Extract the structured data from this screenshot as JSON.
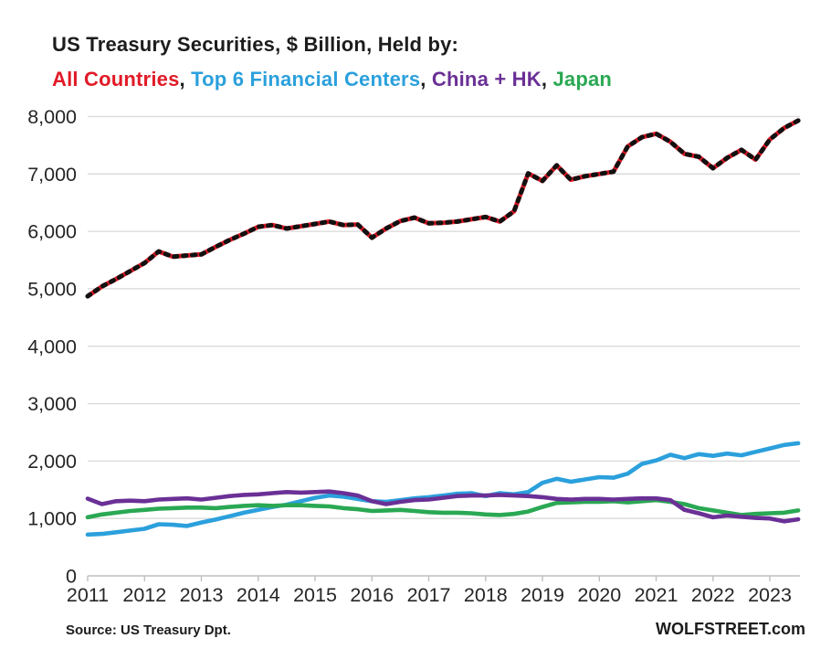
{
  "title": {
    "text": "US Treasury Securities, $ Billion, Held by:"
  },
  "subtitle": {
    "segments": [
      {
        "label": "All Countries",
        "color": "#e11a27"
      },
      {
        "label": ", ",
        "color": "#1c1c1c"
      },
      {
        "label": "Top 6 Financial Centers",
        "color": "#2ba0dc"
      },
      {
        "label": ", ",
        "color": "#1c1c1c"
      },
      {
        "label": "China + HK",
        "color": "#6a3096"
      },
      {
        "label": ", ",
        "color": "#1c1c1c"
      },
      {
        "label": "Japan",
        "color": "#2aa853"
      }
    ]
  },
  "footer": {
    "source": "Source: US Treasury  Dpt.",
    "brand": "WOLFSTREET.com"
  },
  "chart_data": {
    "type": "line",
    "title": "US Treasury Securities, $ Billion, Held by:",
    "xlabel": "",
    "ylabel": "$ Billion",
    "grid": "horizontal",
    "legend": "colored-title-text",
    "xlim": [
      2011,
      2023.53
    ],
    "ylim": [
      0,
      8300
    ],
    "x_ticks": [
      2011,
      2012,
      2013,
      2014,
      2015,
      2016,
      2017,
      2018,
      2019,
      2020,
      2021,
      2022,
      2023
    ],
    "y_ticks": [
      0,
      1000,
      2000,
      3000,
      4000,
      5000,
      6000,
      7000,
      8000
    ],
    "x": [
      2011,
      2011.25,
      2011.5,
      2011.75,
      2012,
      2012.25,
      2012.5,
      2012.75,
      2013,
      2013.25,
      2013.5,
      2013.75,
      2014,
      2014.25,
      2014.5,
      2014.75,
      2015,
      2015.25,
      2015.5,
      2015.75,
      2016,
      2016.25,
      2016.5,
      2016.75,
      2017,
      2017.25,
      2017.5,
      2017.75,
      2018,
      2018.25,
      2018.5,
      2018.75,
      2019,
      2019.25,
      2019.5,
      2019.75,
      2020,
      2020.25,
      2020.5,
      2020.75,
      2021,
      2021.25,
      2021.5,
      2021.75,
      2022,
      2022.25,
      2022.5,
      2022.75,
      2023,
      2023.25,
      2023.5
    ],
    "series": [
      {
        "name": "All Countries",
        "color": "#e11a27",
        "style": "solid-red-with-black-dot-overlay",
        "values": [
          4870,
          5040,
          5170,
          5310,
          5450,
          5650,
          5560,
          5580,
          5600,
          5730,
          5850,
          5960,
          6080,
          6110,
          6050,
          6090,
          6130,
          6170,
          6110,
          6120,
          5890,
          6050,
          6180,
          6240,
          6140,
          6150,
          6170,
          6210,
          6250,
          6170,
          6350,
          7010,
          6880,
          7150,
          6900,
          6960,
          7000,
          7040,
          7480,
          7640,
          7700,
          7560,
          7350,
          7300,
          7100,
          7280,
          7420,
          7250,
          7600,
          7800,
          7930
        ]
      },
      {
        "name": "Top 6 Financial Centers",
        "color": "#2ba0dc",
        "style": "solid",
        "values": [
          720,
          730,
          760,
          790,
          820,
          900,
          890,
          870,
          930,
          980,
          1040,
          1100,
          1150,
          1200,
          1240,
          1300,
          1360,
          1400,
          1380,
          1340,
          1300,
          1290,
          1320,
          1350,
          1370,
          1400,
          1430,
          1440,
          1390,
          1440,
          1420,
          1460,
          1620,
          1690,
          1640,
          1680,
          1720,
          1710,
          1780,
          1950,
          2010,
          2110,
          2050,
          2120,
          2090,
          2130,
          2100,
          2160,
          2220,
          2280,
          2310
        ]
      },
      {
        "name": "China + HK",
        "color": "#6a3096",
        "style": "solid",
        "values": [
          1345,
          1250,
          1300,
          1310,
          1300,
          1330,
          1340,
          1350,
          1330,
          1360,
          1390,
          1410,
          1420,
          1440,
          1460,
          1450,
          1460,
          1470,
          1440,
          1400,
          1300,
          1250,
          1290,
          1320,
          1330,
          1360,
          1390,
          1400,
          1400,
          1410,
          1400,
          1390,
          1370,
          1340,
          1330,
          1340,
          1340,
          1330,
          1340,
          1350,
          1350,
          1320,
          1150,
          1090,
          1020,
          1050,
          1030,
          1010,
          1000,
          950,
          985
        ]
      },
      {
        "name": "Japan",
        "color": "#2aa853",
        "style": "solid",
        "values": [
          1020,
          1070,
          1100,
          1130,
          1150,
          1170,
          1180,
          1190,
          1190,
          1180,
          1200,
          1220,
          1230,
          1220,
          1230,
          1230,
          1220,
          1210,
          1180,
          1160,
          1130,
          1140,
          1150,
          1130,
          1110,
          1100,
          1100,
          1090,
          1070,
          1060,
          1080,
          1120,
          1200,
          1270,
          1280,
          1290,
          1290,
          1300,
          1280,
          1300,
          1320,
          1290,
          1250,
          1180,
          1140,
          1100,
          1060,
          1080,
          1090,
          1100,
          1140
        ]
      }
    ],
    "colors": {
      "gridline": "#d9d9d9",
      "axis": "#bfbfbf",
      "tick_label": "#262626",
      "dot_overlay": "#111111"
    }
  }
}
